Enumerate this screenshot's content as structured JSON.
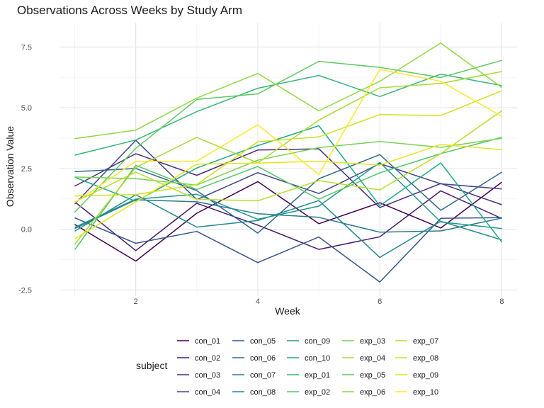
{
  "chart_data": {
    "type": "line",
    "title": "Observations Across Weeks by Study Arm",
    "xlabel": "Week",
    "ylabel": "Observation Value",
    "xlim": [
      0.75,
      8.25
    ],
    "ylim": [
      -2.75,
      8.5
    ],
    "x_ticks": [
      2,
      4,
      6,
      8
    ],
    "y_ticks": [
      -2.5,
      0.0,
      2.5,
      5.0,
      7.5
    ],
    "y_tick_labels": [
      "-2.5",
      "0.0",
      "2.5",
      "5.0",
      "7.5"
    ],
    "grid": true,
    "legend": {
      "title": "subject",
      "position": "bottom",
      "columns": 5,
      "rows": 4
    },
    "x": [
      1,
      2,
      3,
      4,
      5,
      6,
      7,
      8
    ],
    "series": [
      {
        "name": "con_01",
        "color": "#440154",
        "values": [
          0.2,
          -1.31,
          0.66,
          1.96,
          0.23,
          1.09,
          0.05,
          1.94
        ]
      },
      {
        "name": "con_02",
        "color": "#481a6c",
        "values": [
          1.13,
          -0.88,
          1.07,
          0.17,
          -0.83,
          -0.31,
          1.58,
          0.44
        ]
      },
      {
        "name": "con_03",
        "color": "#472f7d",
        "values": [
          1.77,
          3.11,
          2.22,
          3.26,
          3.31,
          0.89,
          1.88,
          1.01
        ]
      },
      {
        "name": "con_04",
        "color": "#414487",
        "values": [
          1.04,
          3.66,
          1.22,
          2.33,
          1.47,
          2.7,
          1.87,
          1.66
        ]
      },
      {
        "name": "con_05",
        "color": "#39568c",
        "values": [
          0.47,
          -0.58,
          -0.09,
          -1.37,
          -0.32,
          -2.17,
          0.45,
          0.48
        ]
      },
      {
        "name": "con_06",
        "color": "#31688e",
        "values": [
          2.37,
          2.5,
          1.59,
          -0.16,
          2.08,
          3.07,
          0.78,
          2.35
        ]
      },
      {
        "name": "con_07",
        "color": "#2a788e",
        "values": [
          0.03,
          1.21,
          1.13,
          0.64,
          0.49,
          -0.12,
          -0.07,
          0.46
        ]
      },
      {
        "name": "con_08",
        "color": "#23888e",
        "values": [
          -0.08,
          1.42,
          0.09,
          0.36,
          1.18,
          -1.16,
          0.33,
          -0.44
        ]
      },
      {
        "name": "con_09",
        "color": "#1f988b",
        "values": [
          0.08,
          1.24,
          1.44,
          0.41,
          0.95,
          2.75,
          0.3,
          0.03
        ]
      },
      {
        "name": "con_10",
        "color": "#22a884",
        "values": [
          2.14,
          1.15,
          2.52,
          3.44,
          4.26,
          0.97,
          2.73,
          -0.53
        ]
      },
      {
        "name": "exp_01",
        "color": "#35b779",
        "values": [
          3.05,
          3.67,
          4.84,
          5.8,
          6.33,
          5.46,
          6.38,
          5.91
        ]
      },
      {
        "name": "exp_02",
        "color": "#54c568",
        "values": [
          -0.84,
          2.63,
          1.64,
          2.58,
          1.24,
          2.32,
          3.11,
          3.78
        ]
      },
      {
        "name": "exp_03",
        "color": "#7ad151",
        "values": [
          2.15,
          2.08,
          1.82,
          2.84,
          3.36,
          3.61,
          3.37,
          3.74
        ]
      },
      {
        "name": "exp_04",
        "color": "#a5db36",
        "values": [
          -0.62,
          2.54,
          3.78,
          2.73,
          4.49,
          5.82,
          6.0,
          6.49
        ]
      },
      {
        "name": "exp_05",
        "color": "#5ec962",
        "values": [
          0.7,
          3.33,
          5.34,
          5.57,
          6.91,
          6.66,
          6.24,
          6.95
        ]
      },
      {
        "name": "exp_06",
        "color": "#92d741",
        "values": [
          3.73,
          4.08,
          5.4,
          6.41,
          4.87,
          6.09,
          7.66,
          5.83
        ]
      },
      {
        "name": "exp_07",
        "color": "#b8de29",
        "values": [
          1.12,
          2.35,
          1.23,
          1.17,
          2.0,
          1.62,
          3.11,
          4.88
        ]
      },
      {
        "name": "exp_08",
        "color": "#d0e11c",
        "values": [
          1.37,
          1.43,
          1.84,
          3.6,
          3.8,
          4.72,
          4.68,
          5.7
        ]
      },
      {
        "name": "exp_09",
        "color": "#e8e419",
        "values": [
          -0.4,
          1.13,
          2.68,
          2.72,
          2.8,
          2.64,
          3.49,
          3.27
        ]
      },
      {
        "name": "exp_10",
        "color": "#fde725",
        "values": [
          1.09,
          2.8,
          2.8,
          4.3,
          2.25,
          6.57,
          6.09,
          4.64
        ]
      }
    ]
  }
}
